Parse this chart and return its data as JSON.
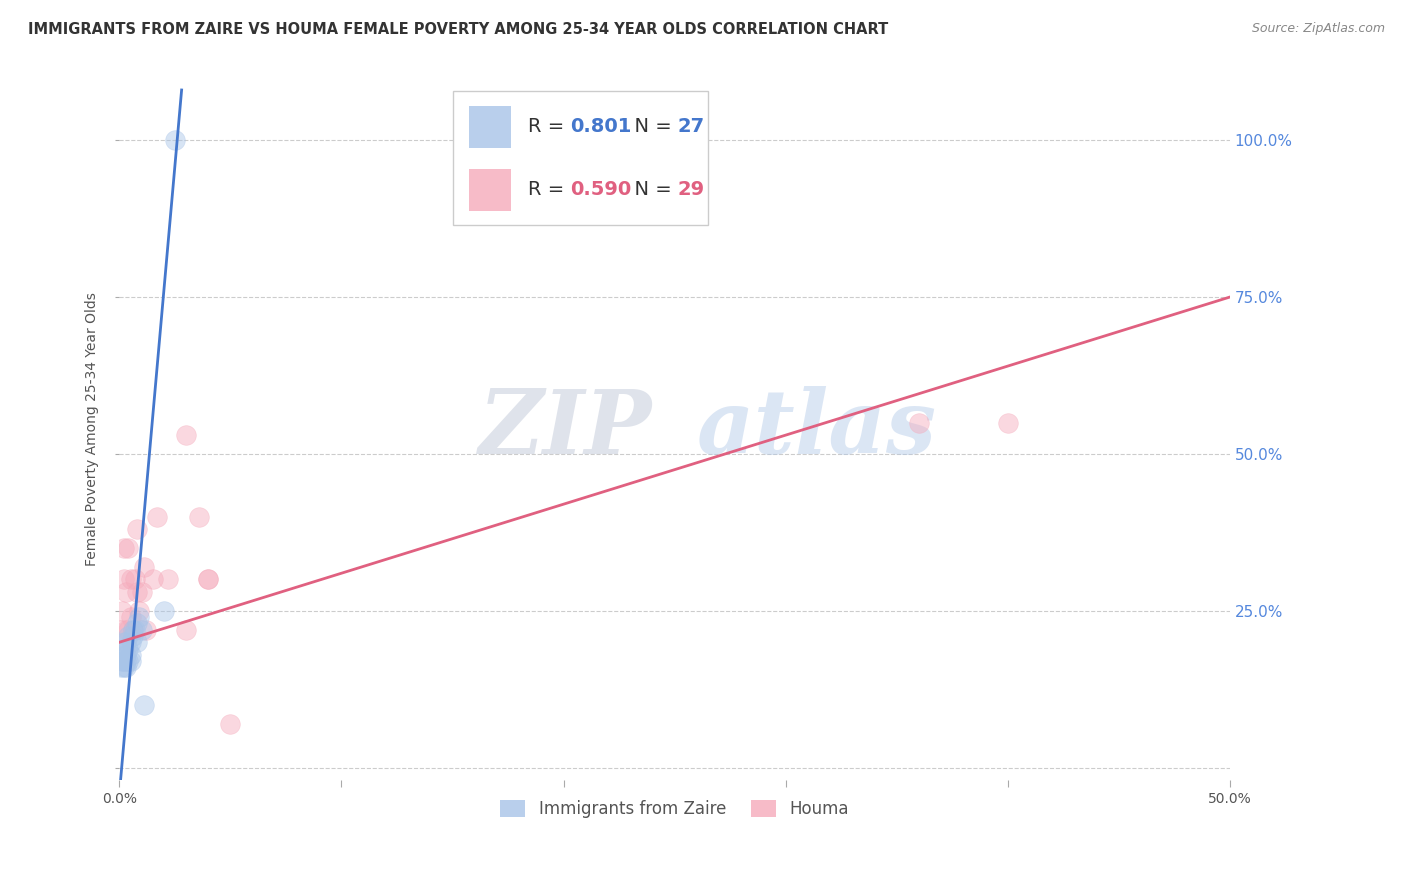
{
  "title": "IMMIGRANTS FROM ZAIRE VS HOUMA FEMALE POVERTY AMONG 25-34 YEAR OLDS CORRELATION CHART",
  "source": "Source: ZipAtlas.com",
  "ylabel": "Female Poverty Among 25-34 Year Olds",
  "xlim": [
    0.0,
    0.5
  ],
  "ylim": [
    -0.02,
    1.1
  ],
  "legend_blue_R": "0.801",
  "legend_blue_N": "27",
  "legend_pink_R": "0.590",
  "legend_pink_N": "29",
  "blue_color": "#a8c4e8",
  "pink_color": "#f5aabb",
  "blue_line_color": "#4477cc",
  "pink_line_color": "#e06080",
  "watermark_zip": "ZIP",
  "watermark_atlas": "atlas",
  "blue_scatter_x": [
    0.0005,
    0.001,
    0.001,
    0.0015,
    0.002,
    0.002,
    0.002,
    0.003,
    0.003,
    0.003,
    0.003,
    0.004,
    0.004,
    0.004,
    0.005,
    0.005,
    0.005,
    0.006,
    0.006,
    0.007,
    0.008,
    0.008,
    0.009,
    0.01,
    0.011,
    0.02,
    0.025
  ],
  "blue_scatter_y": [
    0.16,
    0.17,
    0.19,
    0.17,
    0.16,
    0.18,
    0.2,
    0.16,
    0.17,
    0.18,
    0.2,
    0.17,
    0.19,
    0.21,
    0.17,
    0.18,
    0.2,
    0.22,
    0.21,
    0.22,
    0.2,
    0.23,
    0.24,
    0.22,
    0.1,
    0.25,
    1.0
  ],
  "pink_scatter_x": [
    0.0005,
    0.001,
    0.002,
    0.002,
    0.003,
    0.003,
    0.004,
    0.004,
    0.005,
    0.005,
    0.006,
    0.007,
    0.008,
    0.008,
    0.009,
    0.01,
    0.011,
    0.012,
    0.015,
    0.017,
    0.022,
    0.03,
    0.036,
    0.04,
    0.03,
    0.04,
    0.05,
    0.36,
    0.4
  ],
  "pink_scatter_y": [
    0.22,
    0.25,
    0.3,
    0.35,
    0.22,
    0.28,
    0.35,
    0.22,
    0.3,
    0.24,
    0.22,
    0.3,
    0.28,
    0.38,
    0.25,
    0.28,
    0.32,
    0.22,
    0.3,
    0.4,
    0.3,
    0.22,
    0.4,
    0.3,
    0.53,
    0.3,
    0.07,
    0.55,
    0.55
  ],
  "blue_line_x": [
    -0.001,
    0.028
  ],
  "blue_line_y": [
    -0.08,
    1.08
  ],
  "pink_line_x": [
    0.0,
    0.5
  ],
  "pink_line_y": [
    0.2,
    0.75
  ],
  "bottom_legend": [
    "Immigrants from Zaire",
    "Houma"
  ],
  "title_fontsize": 10.5,
  "axis_tick_fontsize": 10,
  "ylabel_fontsize": 10,
  "scatter_size": 200,
  "scatter_alpha": 0.45,
  "background_color": "#ffffff",
  "grid_color": "#cccccc",
  "grid_linestyle": "--"
}
